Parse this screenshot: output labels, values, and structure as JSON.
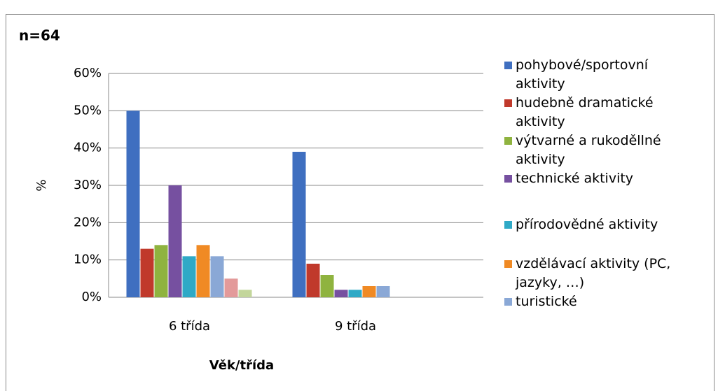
{
  "chart_data": {
    "type": "bar",
    "title": "n=64",
    "y_label": "%",
    "x_label": "Věk/třída",
    "categories": [
      "6 třída",
      "9 třída"
    ],
    "series": [
      {
        "name": "pohybové/sportovní aktivity",
        "color": "#3f6fc0",
        "values": [
          50,
          39
        ]
      },
      {
        "name": "hudebně dramatické aktivity",
        "color": "#c0392b",
        "values": [
          13,
          9
        ]
      },
      {
        "name": "výtvarné a rukoděllné aktivity",
        "color": "#8fb33f",
        "values": [
          14,
          6
        ]
      },
      {
        "name": "technické aktivity",
        "color": "#7650a0",
        "values": [
          30,
          2
        ]
      },
      {
        "name": "přírodovědné aktivity",
        "color": "#2fa9c6",
        "values": [
          11,
          2
        ]
      },
      {
        "name": "vzdělávací aktivity (PC, jazyky, …)",
        "color": "#f08a24",
        "values": [
          14,
          3
        ]
      },
      {
        "name": "turistické",
        "color": "#8aa8d6",
        "values": [
          11,
          3
        ]
      },
      {
        "color": "#e39a9a",
        "values": [
          5,
          0
        ]
      },
      {
        "color": "#c3d69b",
        "values": [
          2,
          0
        ]
      }
    ],
    "ylim": [
      0,
      60
    ],
    "yticks": [
      {
        "value": 0,
        "label": "0%"
      },
      {
        "value": 10,
        "label": "10%"
      },
      {
        "value": 20,
        "label": "20%"
      },
      {
        "value": 30,
        "label": "30%"
      },
      {
        "value": 40,
        "label": "40%"
      },
      {
        "value": 50,
        "label": "50%"
      },
      {
        "value": 60,
        "label": "60%"
      }
    ],
    "grid": true
  }
}
